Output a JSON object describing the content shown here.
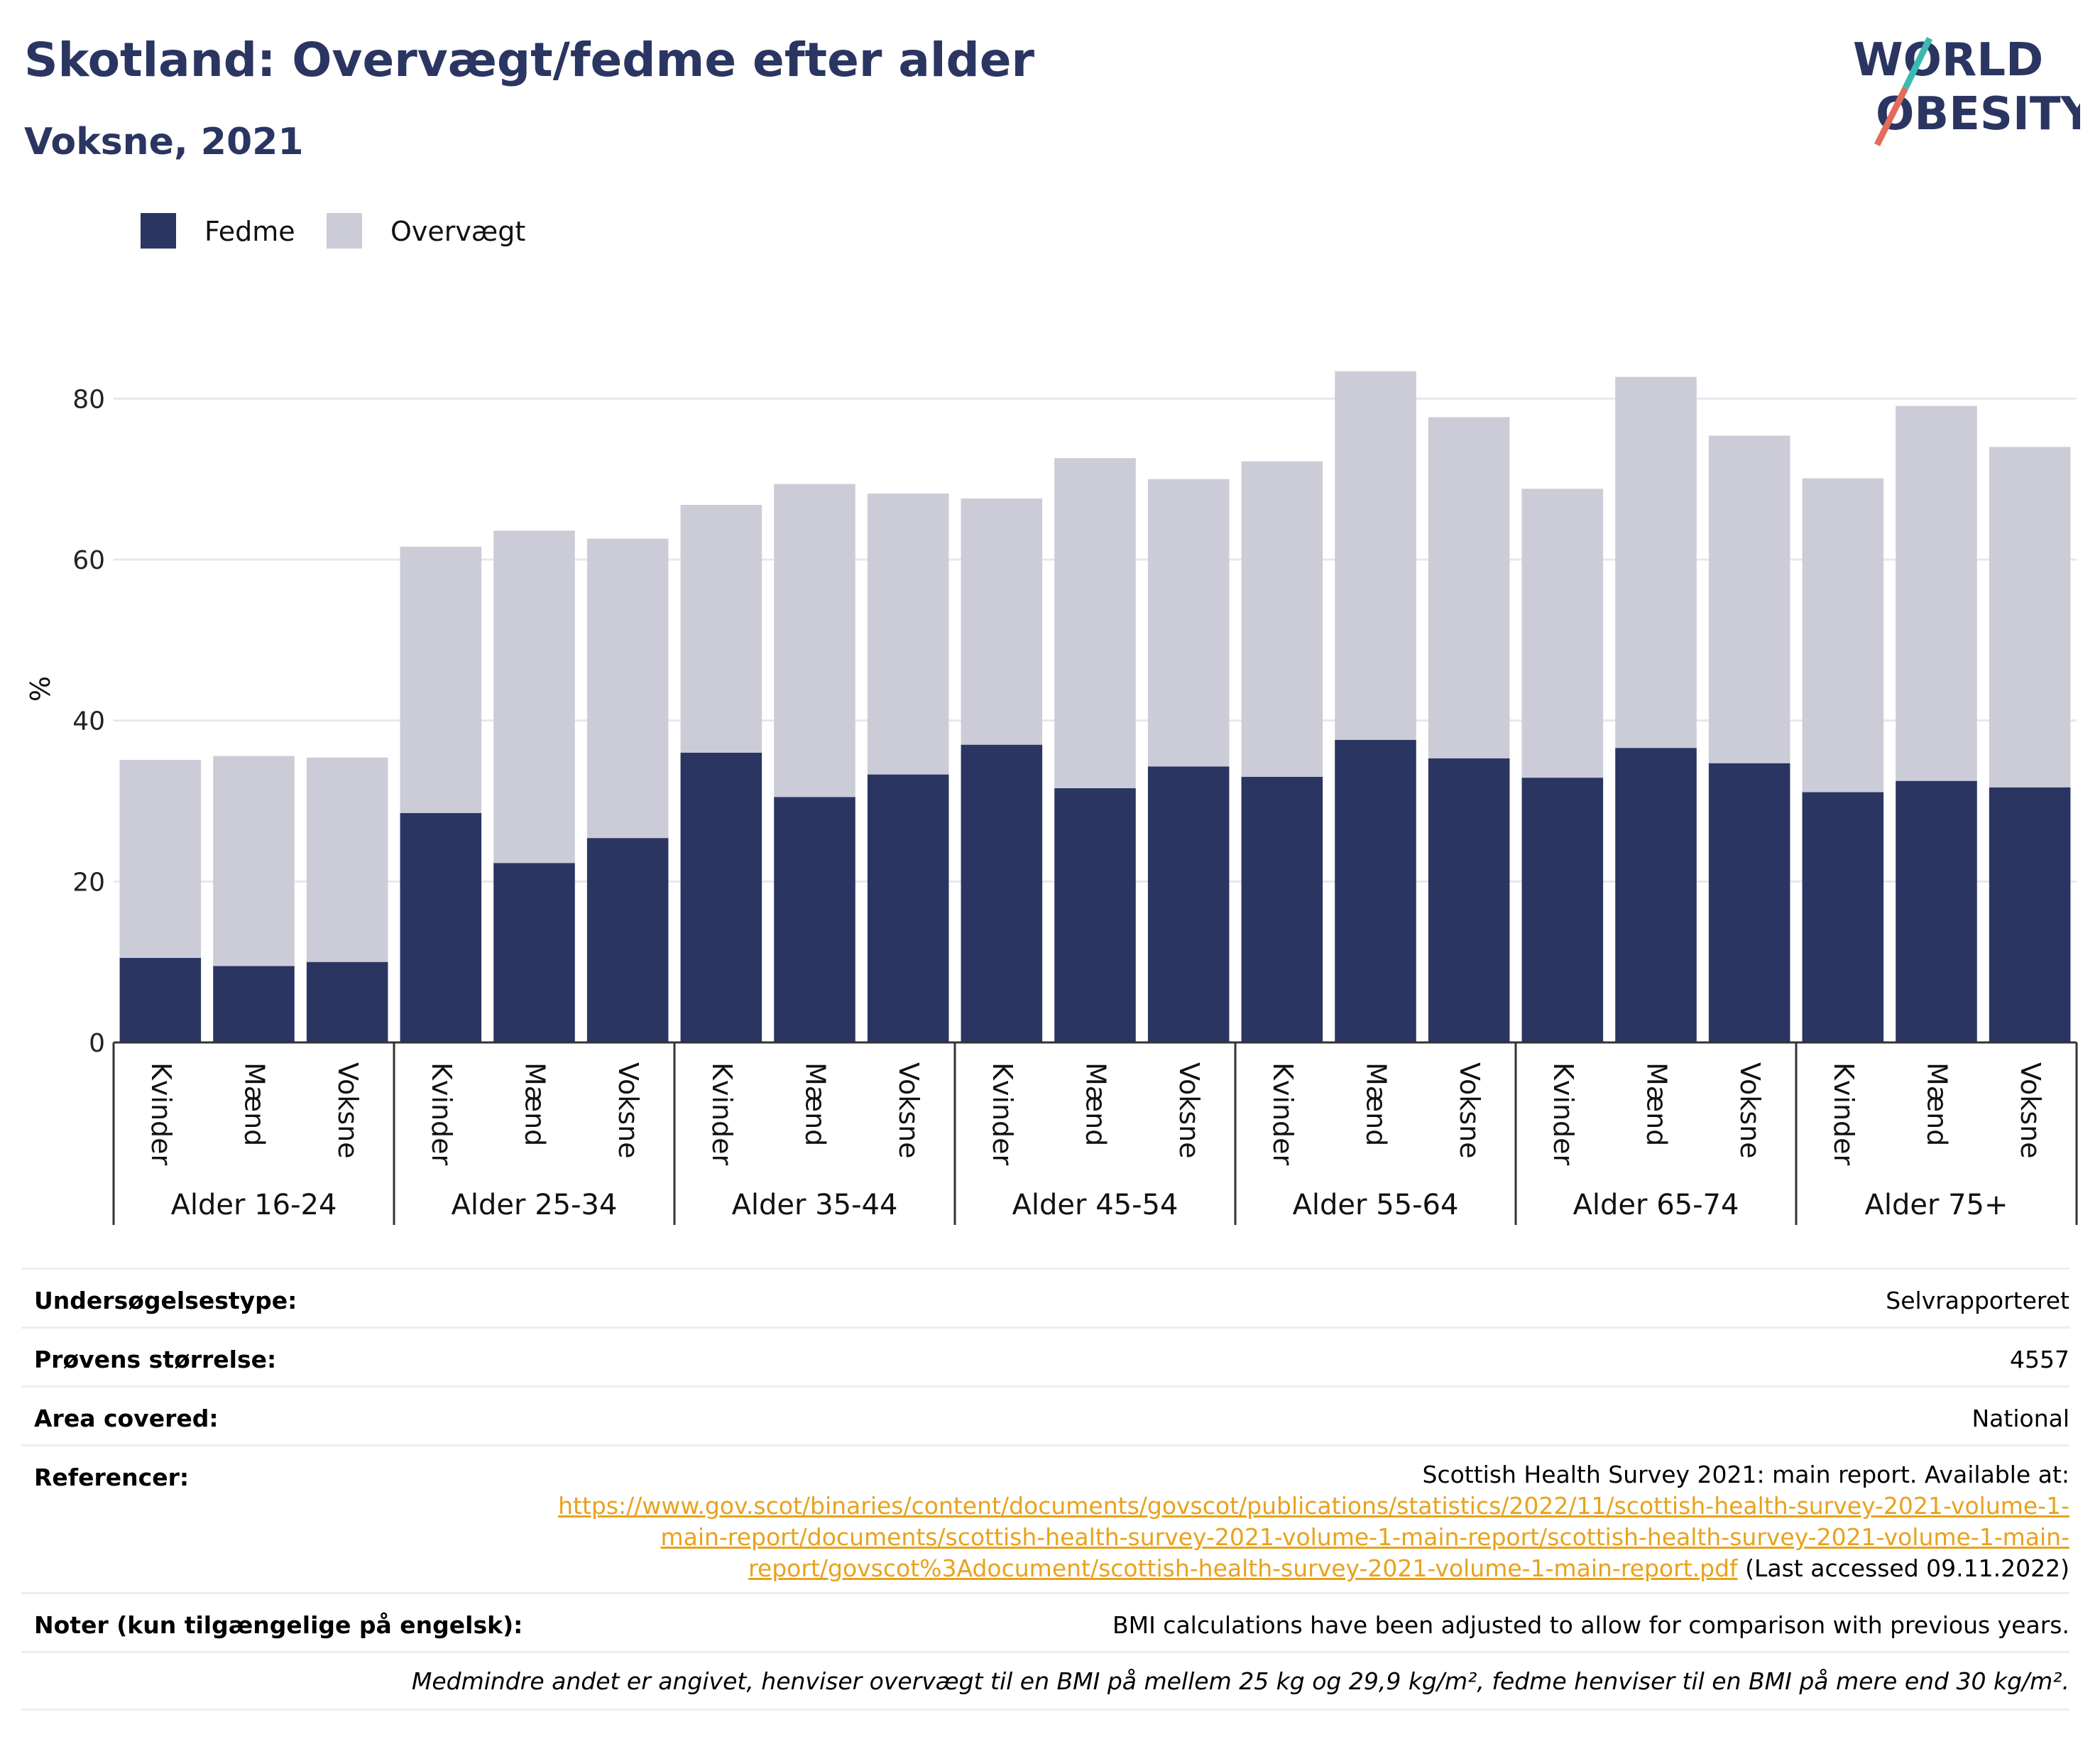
{
  "header": {
    "title": "Skotland: Overvægt/fedme efter alder",
    "subtitle": "Voksne, 2021"
  },
  "logo": {
    "line1": "WORLD",
    "line2": "OBESITY"
  },
  "legend": [
    {
      "label": "Fedme",
      "color": "#2a3562"
    },
    {
      "label": "Overvægt",
      "color": "#cbccd7"
    }
  ],
  "chart_data": {
    "type": "bar",
    "stacked": true,
    "ylabel": "%",
    "ylim": [
      0,
      90
    ],
    "yticks": [
      0,
      20,
      40,
      60,
      80
    ],
    "grid": true,
    "legend_position": "top-left",
    "groups": [
      "Alder 16-24",
      "Alder 25-34",
      "Alder 35-44",
      "Alder 45-54",
      "Alder 55-64",
      "Alder 65-74",
      "Alder 75+"
    ],
    "subcategories": [
      "Kvinder",
      "Mænd",
      "Voksne"
    ],
    "series": [
      {
        "name": "Fedme",
        "color": "#2a3562",
        "values": [
          10.5,
          9.5,
          10.0,
          28.5,
          22.3,
          25.4,
          36.0,
          30.5,
          33.3,
          37.0,
          31.6,
          34.3,
          33.0,
          37.6,
          35.3,
          32.9,
          36.6,
          34.7,
          31.1,
          32.5,
          31.7
        ]
      },
      {
        "name": "Overvægt",
        "color": "#cbccd7",
        "values": [
          24.6,
          26.1,
          25.4,
          33.1,
          41.3,
          37.2,
          30.8,
          38.9,
          34.9,
          30.6,
          41.0,
          35.7,
          39.2,
          45.8,
          42.4,
          35.9,
          46.1,
          40.7,
          39.0,
          46.6,
          42.3
        ]
      }
    ]
  },
  "info": {
    "rows": [
      {
        "label": "Undersøgelsestype:",
        "value": "Selvrapporteret"
      },
      {
        "label": "Prøvens størrelse:",
        "value": "4557"
      },
      {
        "label": "Area covered:",
        "value": "National"
      }
    ],
    "references": {
      "label": "Referencer:",
      "line1": "Scottish Health Survey 2021: main report. Available at:",
      "url_line1": "https://www.gov.scot/binaries/content/documents/govscot/publications/statistics/2022/11/scottish-health-survey-2021-volume-1-",
      "url_line2": "main-report/documents/scottish-health-survey-2021-volume-1-main-report/scottish-health-survey-2021-volume-1-main-",
      "url_line3": "report/govscot%3Adocument/scottish-health-survey-2021-volume-1-main-report.pdf",
      "accessed": " (Last accessed 09.11.2022)"
    },
    "notes": {
      "label": "Noter (kun tilgængelige på engelsk):",
      "value": "BMI calculations have been adjusted to allow for comparison with previous years."
    },
    "footnote": "Medmindre andet er angivet, henviser overvægt til en BMI på mellem 25 kg og 29,9 kg/m², fedme henviser til en BMI på mere end 30 kg/m²."
  }
}
